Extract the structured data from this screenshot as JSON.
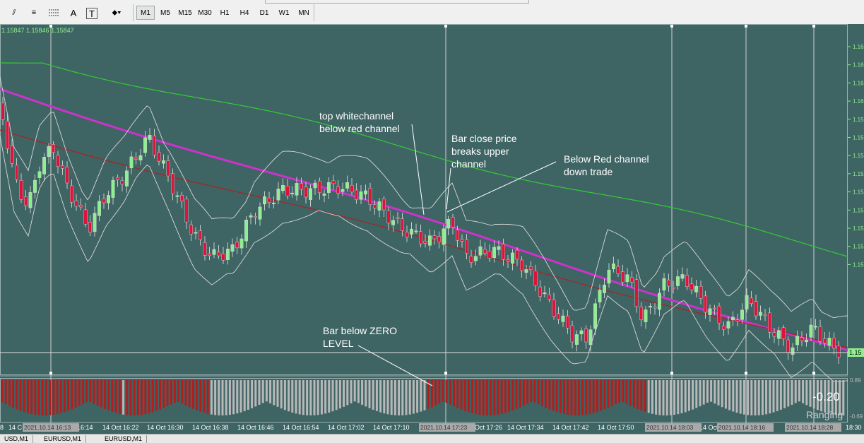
{
  "toolbar": {
    "tools": [
      {
        "name": "fibo-fan-icon",
        "label": "⫽"
      },
      {
        "name": "fibo-expansion-icon",
        "label": "≡"
      },
      {
        "name": "text-tool-icon",
        "label": "A"
      },
      {
        "name": "text-label-tool-icon",
        "label": "T"
      },
      {
        "name": "arrows-tool-icon",
        "label": "⬥▾"
      }
    ],
    "timeframes": [
      "M1",
      "M5",
      "M15",
      "M30",
      "H1",
      "H4",
      "D1",
      "W1",
      "MN"
    ],
    "active_timeframe": "M1"
  },
  "chart": {
    "ohlc_readout": "1.15847 1.15846 1.15847",
    "price_labels": [
      "1.16",
      "1.16",
      "1.16",
      "1.16",
      "1.15",
      "1.15",
      "1.15",
      "1.15",
      "1.15",
      "1.15",
      "1.15",
      "1.15",
      "1.15"
    ],
    "current_price_label": "1.15",
    "indicator_labels": [
      "0.89",
      "-0.69"
    ],
    "oscillator_value": "-0.20",
    "oscillator_state": "Ranging",
    "time_labels": [
      "8",
      "14 C",
      "14 Oct 16:14",
      "14 Oct 16:22",
      "14 Oct 16:30",
      "14 Oct 16:38",
      "14 Oct 16:46",
      "14 Oct 16:54",
      "14 Oct 17:02",
      "14 Oct 17:10",
      "Oct 17:26",
      "14 Oct 17:34",
      "14 Oct 17:42",
      "14 Oct 17:50",
      "14 Oct 18",
      "18:30"
    ],
    "crosshair_time_labels": [
      "2021.10.14 16:13",
      "2021.10.14 17:23",
      "2021.10.14 18:03",
      "2021.10.14 18:16",
      "2021.10.14 18:28"
    ],
    "colors": {
      "background": "#3f6464",
      "bull": "#90ee90",
      "bear": "#dc143c",
      "ma_magenta": "#cc33cc",
      "ma_green": "#33cc33",
      "ma_red": "#aa2222",
      "bands": "#d8d8d8",
      "hist_red": "#b01e1e",
      "hist_grey": "#b8b8b8"
    }
  },
  "annotations": [
    {
      "lines": [
        "top whitechannel",
        "below red channel"
      ]
    },
    {
      "lines": [
        "Bar close price",
        "breaks upper",
        "channel"
      ]
    },
    {
      "lines": [
        "Below Red channel",
        "down trade"
      ]
    },
    {
      "lines": [
        "Bar below ZERO",
        "LEVEL"
      ]
    }
  ],
  "tabs": [
    "USD,M1",
    "EURUSD,M1",
    "EURUSD,M1"
  ]
}
